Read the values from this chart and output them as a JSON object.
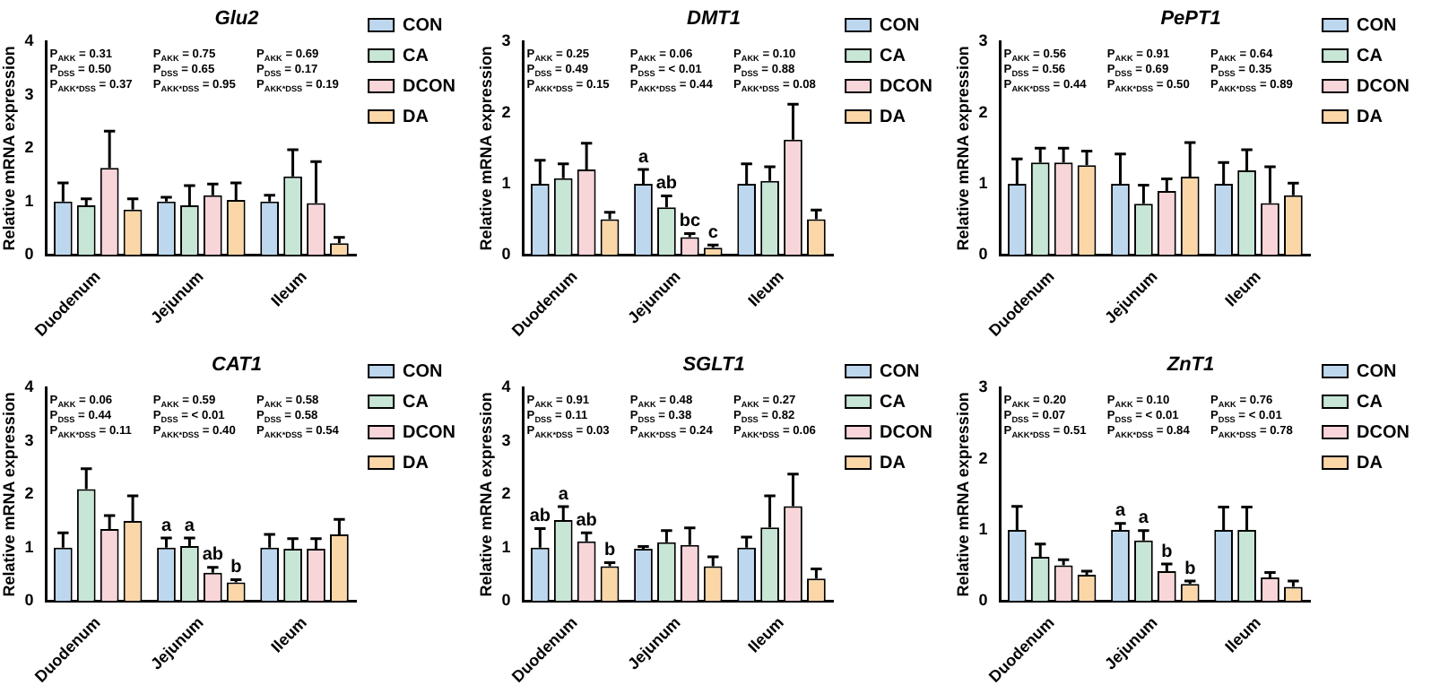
{
  "chart_data": [
    {
      "type": "bar",
      "title": "Glu2",
      "ylabel": "Relative mRNA expression",
      "categories": [
        "Duodenum",
        "Jejunum",
        "Ileum"
      ],
      "ylim": [
        0,
        4
      ],
      "yticks": [
        0,
        1,
        2,
        3,
        4
      ],
      "legend": "right",
      "annotations": [
        "P$_{AKK}$ = 0.31",
        "P$_{DSS}$ = 0.50",
        "P$_{AKK*DSS}$ = 0.37",
        "P$_{AKK}$ = 0.75",
        "P$_{DSS}$ = 0.65",
        "P$_{AKK*DSS}$ = 0.95",
        "P$_{AKK}$ = 0.69",
        "P$_{DSS}$ = 0.17",
        "P$_{AKK*DSS}$ = 0.19"
      ],
      "series": [
        {
          "name": "CON",
          "color": "#bdd7ee",
          "values": [
            1.0,
            1.0,
            1.0
          ],
          "errors": [
            0.35,
            0.08,
            0.12
          ]
        },
        {
          "name": "CA",
          "color": "#c8e6d6",
          "values": [
            0.93,
            0.93,
            1.47
          ],
          "errors": [
            0.12,
            0.37,
            0.5
          ]
        },
        {
          "name": "DCON",
          "color": "#f8d5d8",
          "values": [
            1.63,
            1.12,
            0.97
          ],
          "errors": [
            0.69,
            0.21,
            0.78
          ]
        },
        {
          "name": "DA",
          "color": "#fbd7a8",
          "values": [
            0.85,
            1.03,
            0.22
          ],
          "errors": [
            0.2,
            0.32,
            0.11
          ]
        }
      ]
    },
    {
      "type": "bar",
      "title": "DMT1",
      "ylabel": "Relative mRNA expression",
      "categories": [
        "Duodenum",
        "Jejunum",
        "Ileum"
      ],
      "ylim": [
        0,
        3
      ],
      "yticks": [
        0,
        1,
        2,
        3
      ],
      "legend": "right",
      "annotations": [
        "P$_{AKK}$ = 0.25",
        "P$_{DSS}$ = 0.49",
        "P$_{AKK*DSS}$ = 0.15",
        "P$_{AKK}$ = 0.06",
        "P$_{DSS}$ = < 0.01",
        "P$_{AKK*DSS}$ = 0.44",
        "P$_{AKK}$ = 0.10",
        "P$_{DSS}$ = 0.88",
        "P$_{AKK*DSS}$ = 0.08"
      ],
      "series": [
        {
          "name": "CON",
          "color": "#bdd7ee",
          "values": [
            1.0,
            1.0,
            1.0
          ],
          "errors": [
            0.33,
            0.2,
            0.28
          ],
          "value_labels": [
            null,
            "a",
            null
          ]
        },
        {
          "name": "CA",
          "color": "#c8e6d6",
          "values": [
            1.08,
            0.67,
            1.04
          ],
          "errors": [
            0.2,
            0.16,
            0.2
          ],
          "value_labels": [
            null,
            "ab",
            null
          ]
        },
        {
          "name": "DCON",
          "color": "#f8d5d8",
          "values": [
            1.2,
            0.25,
            1.62
          ],
          "errors": [
            0.37,
            0.05,
            0.5
          ],
          "value_labels": [
            null,
            "bc",
            null
          ]
        },
        {
          "name": "DA",
          "color": "#fbd7a8",
          "values": [
            0.5,
            0.1,
            0.5
          ],
          "errors": [
            0.1,
            0.04,
            0.13
          ],
          "value_labels": [
            null,
            "c",
            null
          ]
        }
      ]
    },
    {
      "type": "bar",
      "title": "PePT1",
      "ylabel": "Relative mRNA expression",
      "categories": [
        "Duodenum",
        "Jejunum",
        "Ileum"
      ],
      "ylim": [
        0,
        3
      ],
      "yticks": [
        0,
        1,
        2,
        3
      ],
      "legend": "right",
      "annotations": [
        "P$_{AKK}$ = 0.56",
        "P$_{DSS}$ = 0.56",
        "P$_{AKK*DSS}$ = 0.44",
        "P$_{AKK}$ = 0.91",
        "P$_{DSS}$ = 0.69",
        "P$_{AKK*DSS}$ = 0.50",
        "P$_{AKK}$ = 0.64",
        "P$_{DSS}$ = 0.35",
        "P$_{AKK*DSS}$ = 0.89"
      ],
      "series": [
        {
          "name": "CON",
          "color": "#bdd7ee",
          "values": [
            1.0,
            1.0,
            1.0
          ],
          "errors": [
            0.35,
            0.42,
            0.3
          ]
        },
        {
          "name": "CA",
          "color": "#c8e6d6",
          "values": [
            1.3,
            0.72,
            1.19
          ],
          "errors": [
            0.2,
            0.26,
            0.29
          ]
        },
        {
          "name": "DCON",
          "color": "#f8d5d8",
          "values": [
            1.3,
            0.9,
            0.73
          ],
          "errors": [
            0.2,
            0.17,
            0.51
          ]
        },
        {
          "name": "DA",
          "color": "#fbd7a8",
          "values": [
            1.26,
            1.1,
            0.84
          ],
          "errors": [
            0.2,
            0.48,
            0.17
          ]
        }
      ]
    },
    {
      "type": "bar",
      "title": "CAT1",
      "ylabel": "Relative mRNA expression",
      "categories": [
        "Duodenum",
        "Jejunum",
        "Ileum"
      ],
      "ylim": [
        0,
        4
      ],
      "yticks": [
        0,
        1,
        2,
        3,
        4
      ],
      "legend": "right",
      "annotations": [
        "P$_{AKK}$ = 0.06",
        "P$_{DSS}$ = 0.44",
        "P$_{AKK*DSS}$ = 0.11",
        "P$_{AKK}$ = 0.59",
        "P$_{DSS}$ = < 0.01",
        "P$_{AKK*DSS}$ = 0.40",
        "P$_{AKK}$ = 0.58",
        "P$_{DSS}$ = 0.58",
        "P$_{AKK*DSS}$ = 0.54"
      ],
      "series": [
        {
          "name": "CON",
          "color": "#bdd7ee",
          "values": [
            1.0,
            1.0,
            1.0
          ],
          "errors": [
            0.28,
            0.18,
            0.25
          ],
          "value_labels": [
            null,
            "a",
            null
          ]
        },
        {
          "name": "CA",
          "color": "#c8e6d6",
          "values": [
            2.1,
            1.03,
            0.98
          ],
          "errors": [
            0.38,
            0.15,
            0.19
          ],
          "value_labels": [
            null,
            "a",
            null
          ]
        },
        {
          "name": "DCON",
          "color": "#f8d5d8",
          "values": [
            1.35,
            0.53,
            0.98
          ],
          "errors": [
            0.25,
            0.1,
            0.19
          ],
          "value_labels": [
            null,
            "ab",
            null
          ]
        },
        {
          "name": "DA",
          "color": "#fbd7a8",
          "values": [
            1.5,
            0.35,
            1.25
          ],
          "errors": [
            0.47,
            0.05,
            0.28
          ],
          "value_labels": [
            null,
            "b",
            null
          ]
        }
      ]
    },
    {
      "type": "bar",
      "title": "SGLT1",
      "ylabel": "Relative mRNA expression",
      "categories": [
        "Duodenum",
        "Jejunum",
        "Ileum"
      ],
      "ylim": [
        0,
        4
      ],
      "yticks": [
        0,
        1,
        2,
        3,
        4
      ],
      "legend": "right",
      "annotations": [
        "P$_{AKK}$ = 0.91",
        "P$_{DSS}$ = 0.11",
        "P$_{AKK*DSS}$ = 0.03",
        "P$_{AKK}$ = 0.48",
        "P$_{DSS}$ = 0.38",
        "P$_{AKK*DSS}$ = 0.24",
        "P$_{AKK}$ = 0.27",
        "P$_{DSS}$ = 0.82",
        "P$_{AKK*DSS}$ = 0.06"
      ],
      "series": [
        {
          "name": "CON",
          "color": "#bdd7ee",
          "values": [
            1.0,
            0.98,
            1.0
          ],
          "errors": [
            0.36,
            0.04,
            0.2
          ],
          "value_labels": [
            "ab",
            null,
            null
          ]
        },
        {
          "name": "CA",
          "color": "#c8e6d6",
          "values": [
            1.52,
            1.1,
            1.38
          ],
          "errors": [
            0.25,
            0.22,
            0.59
          ],
          "value_labels": [
            "a",
            null,
            null
          ]
        },
        {
          "name": "DCON",
          "color": "#f8d5d8",
          "values": [
            1.12,
            1.05,
            1.78
          ],
          "errors": [
            0.16,
            0.32,
            0.6
          ],
          "value_labels": [
            "ab",
            null,
            null
          ]
        },
        {
          "name": "DA",
          "color": "#fbd7a8",
          "values": [
            0.65,
            0.65,
            0.42
          ],
          "errors": [
            0.07,
            0.18,
            0.18
          ],
          "value_labels": [
            "b",
            null,
            null
          ]
        }
      ]
    },
    {
      "type": "bar",
      "title": "ZnT1",
      "ylabel": "Relative mRNA expression",
      "categories": [
        "Duodenum",
        "Jejunum",
        "Ileum"
      ],
      "ylim": [
        0,
        3
      ],
      "yticks": [
        0,
        1,
        2,
        3
      ],
      "legend": "right",
      "annotations": [
        "P$_{AKK}$ = 0.20",
        "P$_{DSS}$ = 0.07",
        "P$_{AKK*DSS}$ = 0.51",
        "P$_{AKK}$ = 0.10",
        "P$_{DSS}$ = < 0.01",
        "P$_{AKK*DSS}$ = 0.84",
        "P$_{AKK}$ = 0.76",
        "P$_{DSS}$ = < 0.01",
        "P$_{AKK*DSS}$ = 0.78"
      ],
      "series": [
        {
          "name": "CON",
          "color": "#bdd7ee",
          "values": [
            1.0,
            1.0,
            1.0
          ],
          "errors": [
            0.33,
            0.09,
            0.32
          ],
          "value_labels": [
            null,
            "a",
            null
          ]
        },
        {
          "name": "CA",
          "color": "#c8e6d6",
          "values": [
            0.62,
            0.85,
            1.0
          ],
          "errors": [
            0.18,
            0.14,
            0.32
          ],
          "value_labels": [
            null,
            "a",
            null
          ]
        },
        {
          "name": "DCON",
          "color": "#f8d5d8",
          "values": [
            0.5,
            0.42,
            0.33
          ],
          "errors": [
            0.08,
            0.1,
            0.07
          ],
          "value_labels": [
            null,
            "b",
            null
          ]
        },
        {
          "name": "DA",
          "color": "#fbd7a8",
          "values": [
            0.37,
            0.24,
            0.2
          ],
          "errors": [
            0.05,
            0.04,
            0.08
          ],
          "value_labels": [
            null,
            "b",
            null
          ]
        }
      ]
    }
  ]
}
